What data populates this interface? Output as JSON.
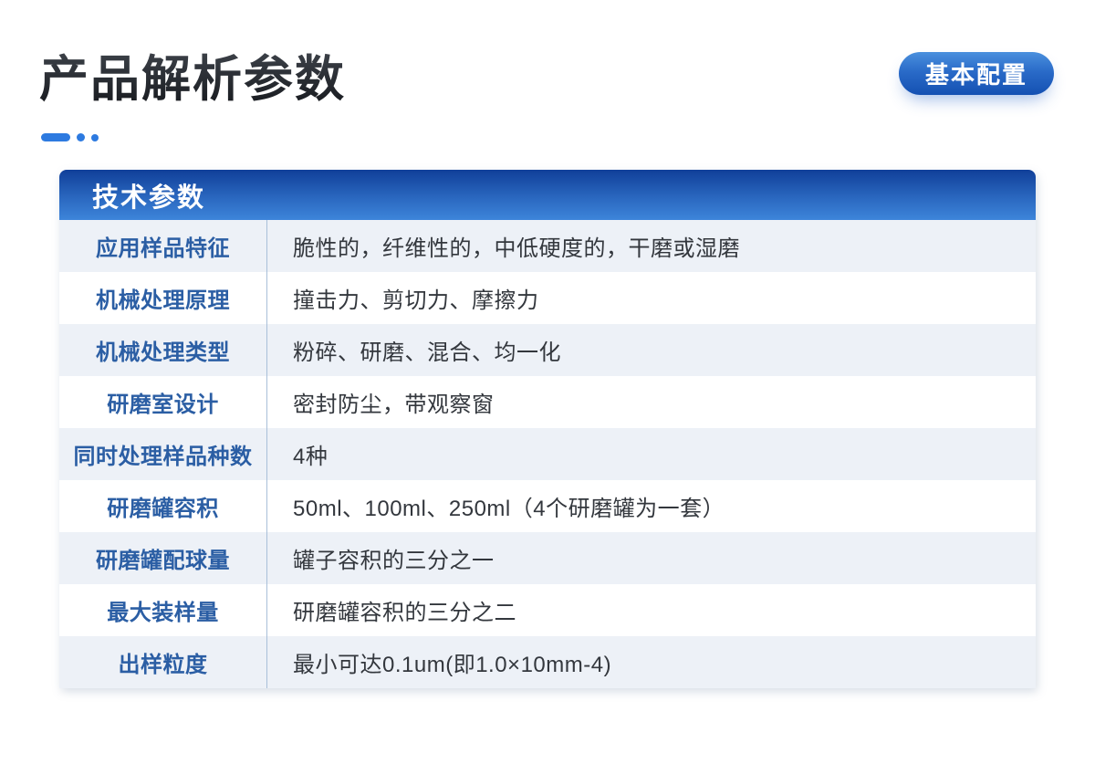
{
  "page": {
    "title": "产品解析参数",
    "badge_label": "基本配置"
  },
  "table": {
    "header": "技术参数",
    "rows": [
      {
        "label": "应用样品特征",
        "value": "脆性的，纤维性的，中低硬度的，干磨或湿磨"
      },
      {
        "label": "机械处理原理",
        "value": "撞击力、剪切力、摩擦力"
      },
      {
        "label": "机械处理类型",
        "value": "粉碎、研磨、混合、均一化"
      },
      {
        "label": "研磨室设计",
        "value": "密封防尘，带观察窗"
      },
      {
        "label": "同时处理样品种数",
        "value": "4种"
      },
      {
        "label": "研磨罐容积",
        "value": "50ml、100ml、250ml（4个研磨罐为一套）"
      },
      {
        "label": "研磨罐配球量",
        "value": "罐子容积的三分之一"
      },
      {
        "label": "最大装样量",
        "value": "研磨罐容积的三分之二"
      },
      {
        "label": "出样粒度",
        "value": "最小可达0.1um(即1.0×10mm-4)"
      }
    ]
  },
  "colors": {
    "accent_blue": "#2d7ae0",
    "header_gradient_top": "#103f99",
    "header_gradient_bottom": "#3d85da",
    "badge_gradient_top": "#4a90de",
    "badge_gradient_bottom": "#1450b2",
    "label_text": "#2b5ea4",
    "value_text": "#33373d",
    "row_alt_background": "#edf1f7",
    "column_divider": "#a9bfd8",
    "title_text": "#23262b"
  }
}
